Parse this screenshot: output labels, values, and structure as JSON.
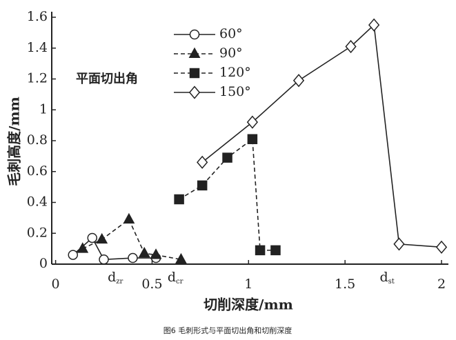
{
  "chart_data": {
    "type": "line",
    "y_label": "毛刺高度/mm",
    "x_label": "切削深度/mm",
    "legend_title": "平面切出角",
    "caption": "图6 毛刺形式与平面切出角和切削深度",
    "xlim": [
      -0.02,
      2
    ],
    "xticks": [
      0,
      0.5,
      1,
      1.5,
      2
    ],
    "ylim": [
      0,
      1.6
    ],
    "yticks": [
      0,
      0.2,
      0.4,
      0.6,
      0.8,
      1,
      1.2,
      1.4,
      1.6
    ],
    "annotations": [
      {
        "text": "d",
        "sub": "zr",
        "x": 0.27
      },
      {
        "text": "d",
        "sub": "cr",
        "x": 0.58
      },
      {
        "text": "d",
        "sub": "st",
        "x": 1.68
      }
    ],
    "series": [
      {
        "name": "60°",
        "color": "#222",
        "marker": "circle",
        "dash": false,
        "x": [
          0.09,
          0.19,
          0.25,
          0.4,
          0.52
        ],
        "values": [
          0.06,
          0.17,
          0.03,
          0.04,
          0.04
        ]
      },
      {
        "name": "90°",
        "color": "#222",
        "marker": "triangle",
        "dash": true,
        "x": [
          0.14,
          0.24,
          0.38,
          0.46,
          0.52,
          0.65
        ],
        "values": [
          0.1,
          0.16,
          0.29,
          0.07,
          0.06,
          0.03
        ]
      },
      {
        "name": "120°",
        "color": "#222",
        "marker": "square",
        "dash": true,
        "x": [
          0.64,
          0.76,
          0.89,
          1.02,
          1.06,
          1.14
        ],
        "values": [
          0.42,
          0.51,
          0.69,
          0.81,
          0.09,
          0.09
        ]
      },
      {
        "name": "150°",
        "color": "#222",
        "marker": "diamond",
        "dash": false,
        "x": [
          0.76,
          1.02,
          1.26,
          1.53,
          1.65,
          1.78,
          2.0
        ],
        "values": [
          0.66,
          0.92,
          1.19,
          1.41,
          1.55,
          0.13,
          0.11
        ]
      }
    ]
  }
}
